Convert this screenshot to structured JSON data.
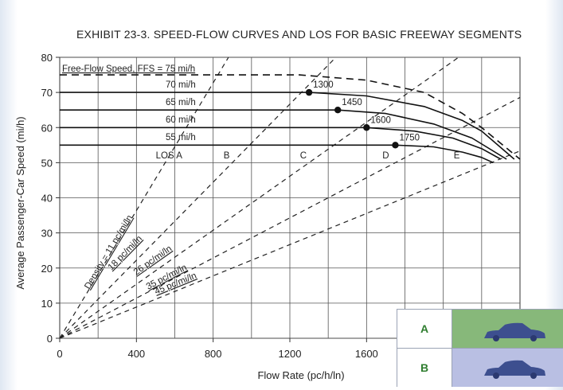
{
  "chart_data": {
    "type": "line",
    "title": "EXHIBIT 23-3.  SPEED-FLOW CURVES AND LOS FOR BASIC FREEWAY SEGMENTS",
    "xlabel": "Flow Rate (pc/h/ln)",
    "ylabel": "Average Passenger-Car Speed (mi/h)",
    "xlim": [
      0,
      2400
    ],
    "ylim": [
      0,
      80
    ],
    "xticks": [
      "0",
      "400",
      "800",
      "1200",
      "1600"
    ],
    "yticks": [
      "0",
      "10",
      "20",
      "30",
      "40",
      "50",
      "60",
      "70",
      "80"
    ],
    "grid": true,
    "series": [
      {
        "name": "Free-Flow Speed, FFS = 75 mi/h",
        "style": "dashed",
        "x": [
          0,
          1250,
          1600,
          1900,
          2100,
          2200,
          2400
        ],
        "y": [
          75,
          75,
          73.5,
          70,
          64,
          60,
          51
        ]
      },
      {
        "name": "70 mi/h",
        "style": "solid",
        "x": [
          0,
          1300,
          1600,
          1900,
          2100,
          2200,
          2370
        ],
        "y": [
          70,
          70,
          69,
          66,
          62,
          59,
          51
        ]
      },
      {
        "name": "65 mi/h",
        "style": "solid",
        "x": [
          0,
          1450,
          1700,
          1950,
          2150,
          2330
        ],
        "y": [
          65,
          65,
          64,
          61,
          57,
          51
        ]
      },
      {
        "name": "60 mi/h",
        "style": "solid",
        "x": [
          0,
          1600,
          1850,
          2050,
          2200,
          2300
        ],
        "y": [
          60,
          60,
          59,
          57,
          54,
          51
        ]
      },
      {
        "name": "55 mi/h",
        "style": "solid",
        "x": [
          0,
          1750,
          1950,
          2100,
          2200,
          2260
        ],
        "y": [
          55,
          55,
          54.5,
          53,
          51.5,
          50
        ]
      }
    ],
    "breakpoints": [
      {
        "label": "1300",
        "x": 1300,
        "y": 70
      },
      {
        "label": "1450",
        "x": 1450,
        "y": 65
      },
      {
        "label": "1600",
        "x": 1600,
        "y": 60
      },
      {
        "label": "1750",
        "x": 1750,
        "y": 55
      }
    ],
    "density_lines": [
      {
        "label": "Density = 11 pc/mi/ln",
        "density": 11
      },
      {
        "label": "18 pc/mi/ln",
        "density": 18
      },
      {
        "label": "26 pc/mi/ln",
        "density": 26
      },
      {
        "label": "35 pc/mi/ln",
        "density": 35
      },
      {
        "label": "45 pc/mi/ln",
        "density": 45
      }
    ],
    "los_labels": [
      {
        "label": "LOS A",
        "x": 570,
        "y": 51
      },
      {
        "label": "B",
        "x": 870,
        "y": 51
      },
      {
        "label": "C",
        "x": 1270,
        "y": 51
      },
      {
        "label": "D",
        "x": 1700,
        "y": 51
      },
      {
        "label": "E",
        "x": 2070,
        "y": 51
      }
    ]
  },
  "inset": {
    "rows": [
      {
        "letter": "A",
        "color": "#87b87a"
      },
      {
        "letter": "B",
        "color": "#b9bfe3"
      }
    ],
    "car_color": "#3d4f8f"
  }
}
